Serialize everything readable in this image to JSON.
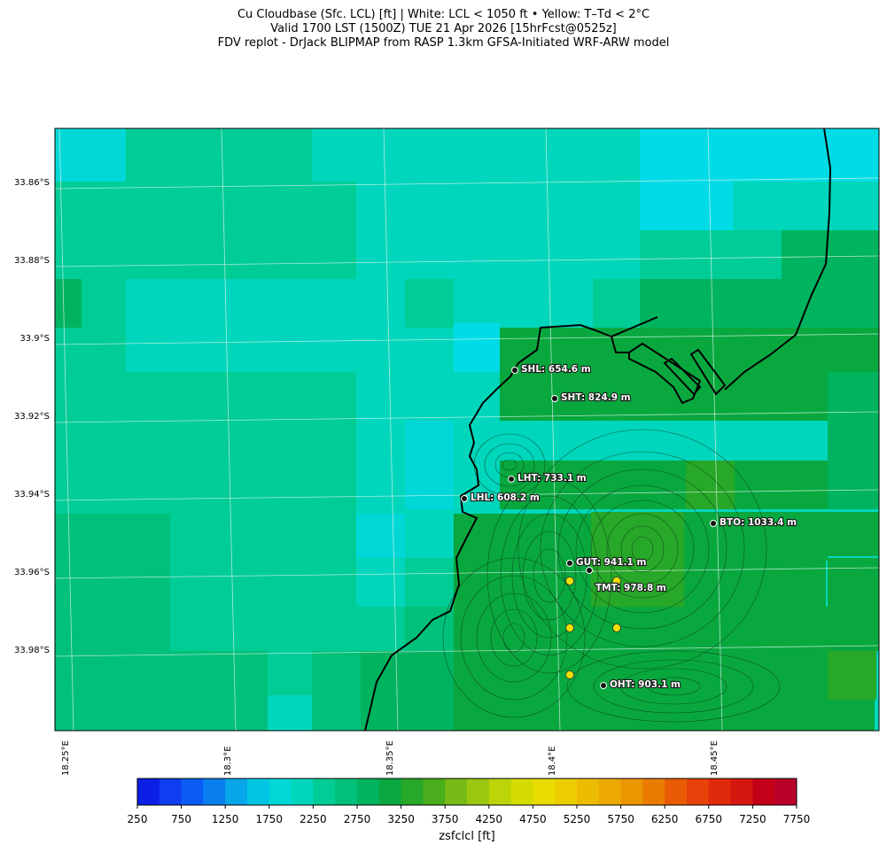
{
  "titles": {
    "line1": "Cu Cloudbase (Sfc. LCL) [ft]  |  White: LCL < 1050 ft • Yellow: T–Td < 2°C",
    "line2": "Valid 1700 LST (1500Z) TUE 21 Apr 2026 [15hrFcst@0525z]",
    "line3": "FDV replot - DrJack BLIPMAP from RASP 1.3km GFSA-Initiated WRF-ARW model"
  },
  "axes": {
    "lat_ticks": [
      "33.86°S",
      "33.88°S",
      "33.9°S",
      "33.92°S",
      "33.94°S",
      "33.96°S",
      "33.98°S"
    ],
    "lon_ticks": [
      "18.25°E",
      "18.3°E",
      "18.35°E",
      "18.4°E",
      "18.45°E"
    ]
  },
  "colorbar": {
    "label": "zsfclcl [ft]",
    "ticks": [
      "250",
      "750",
      "1250",
      "1750",
      "2250",
      "2750",
      "3250",
      "3750",
      "4250",
      "4750",
      "5250",
      "5750",
      "6250",
      "6750",
      "7250",
      "7750"
    ],
    "colors": [
      "#0b1fe6",
      "#0f3df0",
      "#0a5cf5",
      "#0a80ef",
      "#06a6e8",
      "#00c6e4",
      "#00d8d8",
      "#00d6bb",
      "#00cc96",
      "#00c07a",
      "#00b35f",
      "#09a83f",
      "#27a828",
      "#4aad1c",
      "#78bb16",
      "#9cc710",
      "#bcd408",
      "#d6dc02",
      "#e8dc00",
      "#ecce00",
      "#edbc00",
      "#ecaa00",
      "#eb9500",
      "#ea7c00",
      "#e95c05",
      "#e6420a",
      "#e02a0c",
      "#d41810",
      "#c40018",
      "#b8002a"
    ]
  },
  "stations": [
    {
      "code": "SHL",
      "label": "SHL: 654.6 m"
    },
    {
      "code": "SHT",
      "label": "SHT: 824.9 m"
    },
    {
      "code": "LHT",
      "label": "LHT: 733.1 m"
    },
    {
      "code": "LHL",
      "label": "LHL: 608.2 m"
    },
    {
      "code": "BTO",
      "label": "BTO: 1033.4 m"
    },
    {
      "code": "GUT",
      "label": "GUT: 941.1 m"
    },
    {
      "code": "TMT",
      "label": "TMT: 978.8 m"
    },
    {
      "code": "OHT",
      "label": "OHT: 903.1 m"
    }
  ],
  "palette": {
    "coast": "#000000",
    "dot_white": "#ffffff",
    "dot_yellow": "#f0e000",
    "station_dot": "#111111"
  }
}
